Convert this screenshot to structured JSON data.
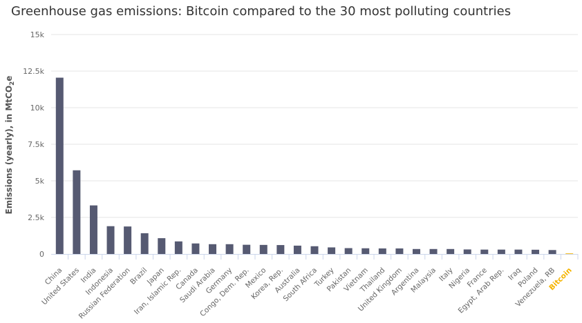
{
  "chart_data": {
    "type": "bar",
    "title": "Greenhouse gas emissions: Bitcoin compared to the 30 most polluting countries",
    "ylabel": "Emissions (yearly), in MtCO",
    "ylabel_sub": "2",
    "ylabel_suffix": "e",
    "xlabel": "",
    "ylim": [
      0,
      15000
    ],
    "ytick_values": [
      0,
      2500,
      5000,
      7500,
      10000,
      12500,
      15000
    ],
    "ytick_labels": [
      "0",
      "2.5k",
      "5k",
      "7.5k",
      "10k",
      "12.5k",
      "15k"
    ],
    "grid": true,
    "categories": [
      "China",
      "United States",
      "India",
      "Indonesia",
      "Russian Federation",
      "Brazil",
      "Japan",
      "Iran, Islamic Rep.",
      "Canada",
      "Saudi Arabia",
      "Germany",
      "Congo, Dem. Rep.",
      "Mexico",
      "Korea, Rep.",
      "Australia",
      "South Africa",
      "Turkey",
      "Pakistan",
      "Vietnam",
      "Thailand",
      "United Kingdom",
      "Argentina",
      "Malaysia",
      "Italy",
      "Nigeria",
      "France",
      "Egypt, Arab Rep.",
      "Iraq",
      "Poland",
      "Venezuela, RB",
      "Bitcoin"
    ],
    "values": [
      12050,
      5720,
      3320,
      1900,
      1880,
      1420,
      1080,
      860,
      720,
      670,
      670,
      630,
      620,
      610,
      570,
      530,
      450,
      400,
      390,
      380,
      380,
      340,
      340,
      340,
      310,
      300,
      300,
      300,
      290,
      270,
      40
    ],
    "highlight_category": "Bitcoin",
    "colors": {
      "bar": "#565a72",
      "highlight": "#f5b400",
      "grid": "#e6e6e6",
      "axis": "#ccd6eb",
      "title": "#333333"
    }
  }
}
